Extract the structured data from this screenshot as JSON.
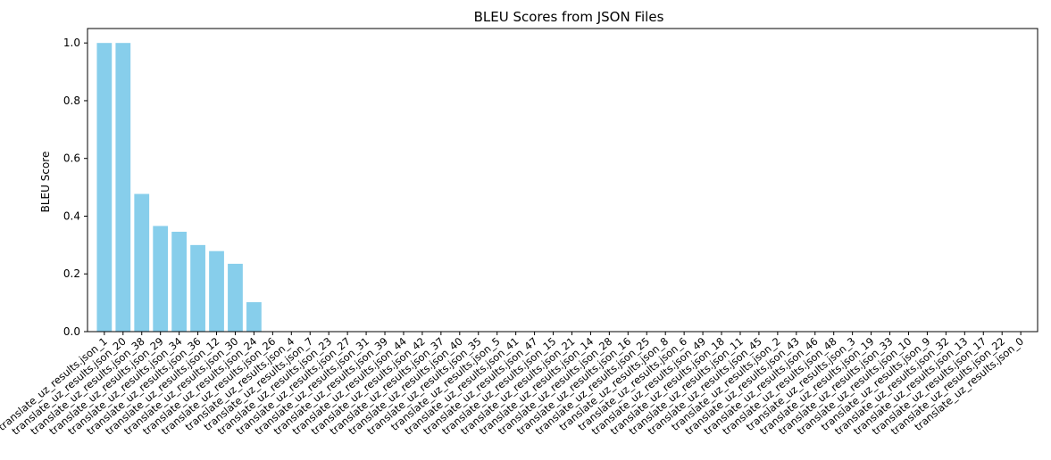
{
  "chart_data": {
    "type": "bar",
    "title": "BLEU Scores from JSON Files",
    "xlabel": "",
    "ylabel": "BLEU Score",
    "ylim": [
      0,
      1.05
    ],
    "yticks": [
      0.0,
      0.2,
      0.4,
      0.6,
      0.8,
      1.0
    ],
    "ytick_labels": [
      "0.0",
      "0.2",
      "0.4",
      "0.6",
      "0.8",
      "1.0"
    ],
    "grid": false,
    "bar_color": "#87ceeb",
    "categories": [
      "translate_uz_results.json_1",
      "translate_uz_results.json_20",
      "translate_uz_results.json_38",
      "translate_uz_results.json_29",
      "translate_uz_results.json_34",
      "translate_uz_results.json_36",
      "translate_uz_results.json_12",
      "translate_uz_results.json_30",
      "translate_uz_results.json_24",
      "translate_uz_results.json_26",
      "translate_uz_results.json_4",
      "translate_uz_results.json_7",
      "translate_uz_results.json_23",
      "translate_uz_results.json_27",
      "translate_uz_results.json_31",
      "translate_uz_results.json_39",
      "translate_uz_results.json_44",
      "translate_uz_results.json_42",
      "translate_uz_results.json_37",
      "translate_uz_results.json_40",
      "translate_uz_results.json_35",
      "translate_uz_results.json_5",
      "translate_uz_results.json_41",
      "translate_uz_results.json_47",
      "translate_uz_results.json_15",
      "translate_uz_results.json_21",
      "translate_uz_results.json_14",
      "translate_uz_results.json_28",
      "translate_uz_results.json_16",
      "translate_uz_results.json_25",
      "translate_uz_results.json_8",
      "translate_uz_results.json_6",
      "translate_uz_results.json_49",
      "translate_uz_results.json_18",
      "translate_uz_results.json_11",
      "translate_uz_results.json_45",
      "translate_uz_results.json_2",
      "translate_uz_results.json_43",
      "translate_uz_results.json_46",
      "translate_uz_results.json_48",
      "translate_uz_results.json_3",
      "translate_uz_results.json_19",
      "translate_uz_results.json_33",
      "translate_uz_results.json_10",
      "translate_uz_results.json_9",
      "translate_uz_results.json_32",
      "translate_uz_results.json_13",
      "translate_uz_results.json_17",
      "translate_uz_results.json_22",
      "translate_uz_results.json_0"
    ],
    "values": [
      1.0,
      1.0,
      0.477,
      0.366,
      0.346,
      0.3,
      0.279,
      0.235,
      0.102,
      0,
      0,
      0,
      0,
      0,
      0,
      0,
      0,
      0,
      0,
      0,
      0,
      0,
      0,
      0,
      0,
      0,
      0,
      0,
      0,
      0,
      0,
      0,
      0,
      0,
      0,
      0,
      0,
      0,
      0,
      0,
      0,
      0,
      0,
      0,
      0,
      0,
      0,
      0,
      0,
      0
    ]
  }
}
